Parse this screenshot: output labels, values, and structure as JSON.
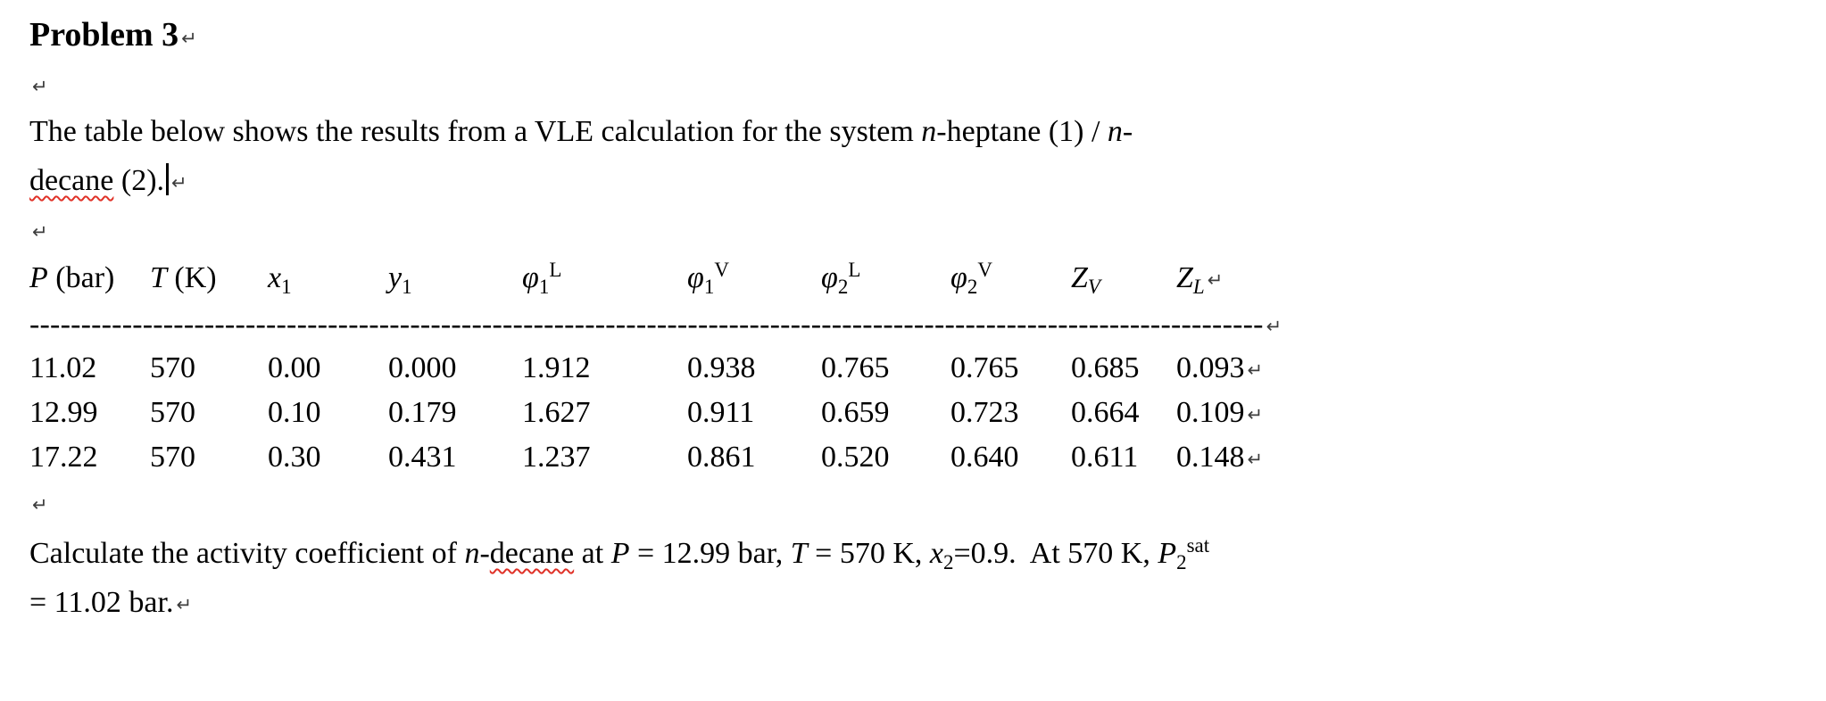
{
  "page": {
    "background": "#ffffff",
    "text_color": "#000000",
    "squiggle_color": "#e03228"
  },
  "marks": {
    "return": "↵"
  },
  "title": {
    "text": "Problem 3"
  },
  "intro": {
    "seg1": "The table below shows the results from a VLE calculation for the system ",
    "n1": "n",
    "seg2": "-heptane (1) / ",
    "n2": "n",
    "seg3": "-",
    "decane": "decane",
    "seg4": " (2)."
  },
  "table": {
    "headers": [
      {
        "base": "P",
        "rest": " (bar)"
      },
      {
        "base": "T",
        "rest": " (K)"
      },
      {
        "base": "x",
        "sub": "1"
      },
      {
        "base": "y",
        "sub": "1"
      },
      {
        "base": "φ",
        "sub": "1",
        "sup": "L"
      },
      {
        "base": "φ",
        "sub": "1",
        "sup": "V"
      },
      {
        "base": "φ",
        "sub": "2",
        "sup": "L"
      },
      {
        "base": "φ",
        "sub": "2",
        "sup": "V"
      },
      {
        "base": "Z",
        "subit": "V"
      },
      {
        "base": "Z",
        "subit": "L"
      }
    ],
    "separator": "------------------------------------------------------------------------------------------------------------------------",
    "rows": [
      [
        "11.02",
        "570",
        "0.00",
        "0.000",
        "1.912",
        "0.938",
        "0.765",
        "0.765",
        "0.685",
        "0.093"
      ],
      [
        "12.99",
        "570",
        "0.10",
        "0.179",
        "1.627",
        "0.911",
        "0.659",
        "0.723",
        "0.664",
        "0.109"
      ],
      [
        "17.22",
        "570",
        "0.30",
        "0.431",
        "1.237",
        "0.861",
        "0.520",
        "0.640",
        "0.611",
        "0.148"
      ]
    ]
  },
  "question": {
    "seg1": "Calculate the activity coefficient of ",
    "n": "n",
    "seg2": "-",
    "decane": "decane",
    "seg3": " at ",
    "P": "P",
    "seg4": " = 12.99 bar, ",
    "T": "T",
    "seg5": " = 570 K, ",
    "x": "x",
    "xsub": "2",
    "seg6": "=0.9.  At 570 K, ",
    "P2": "P",
    "p2sub": "2",
    "p2sup": "sat",
    "line2": "= 11.02 bar."
  }
}
